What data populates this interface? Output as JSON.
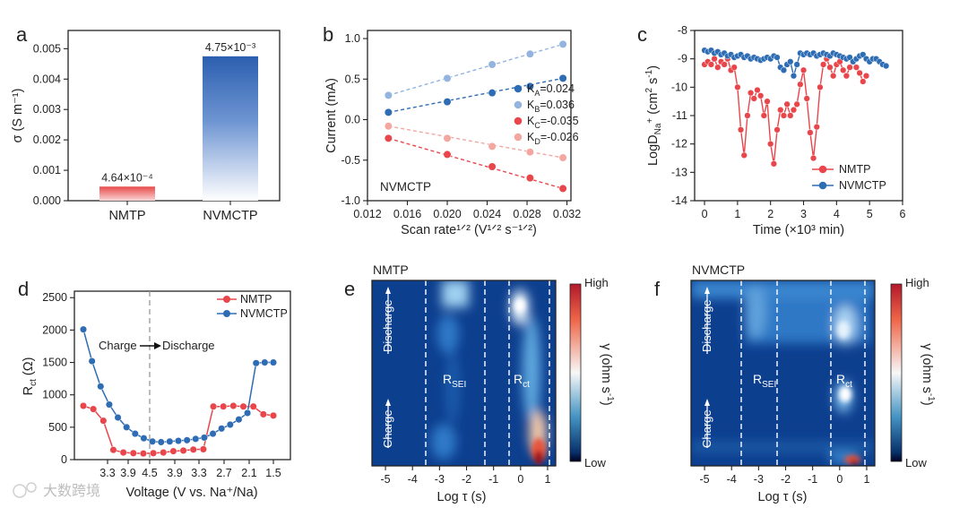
{
  "colors": {
    "nmtp": "#e8464b",
    "nvmctp": "#2e6db4",
    "nmtp_light": "#f4a6a0",
    "nvmctp_light": "#93b4de",
    "axis": "#222222",
    "dash": "#999999"
  },
  "watermark": "大数跨境",
  "chart_data": [
    {
      "panel": "a",
      "type": "bar",
      "categories": [
        "NMTP",
        "NVMCTP"
      ],
      "values": [
        0.000464,
        0.00475
      ],
      "value_labels": [
        "4.64×10⁻⁴",
        "4.75×10⁻³"
      ],
      "ylabel": "σ (S m⁻¹)",
      "yticks": [
        "0.000",
        "0.001",
        "0.002",
        "0.003",
        "0.004",
        "0.005"
      ],
      "ylim": [
        0,
        0.0056
      ]
    },
    {
      "panel": "b",
      "type": "scatter",
      "xlabel": "Scan rate¹ᐟ² (V¹ᐟ² s⁻¹ᐟ²)",
      "ylabel": "Current (mA)",
      "xticks": [
        "0.012",
        "0.016",
        "0.020",
        "0.024",
        "0.028",
        "0.032"
      ],
      "yticks": [
        "-1.0",
        "-0.5",
        "0.0",
        "0.5",
        "1.0"
      ],
      "xlim": [
        0.012,
        0.0324
      ],
      "ylim": [
        -1.0,
        1.1
      ],
      "x": [
        0.0141,
        0.02,
        0.0245,
        0.0283,
        0.0316
      ],
      "annotation": "NVMCTP",
      "series": [
        {
          "name": "KA=0.024",
          "values": [
            0.09,
            0.22,
            0.33,
            0.41,
            0.51
          ]
        },
        {
          "name": "KB=0.036",
          "values": [
            0.3,
            0.51,
            0.68,
            0.81,
            0.93
          ]
        },
        {
          "name": "KC=-0.035",
          "values": [
            -0.23,
            -0.43,
            -0.58,
            -0.72,
            -0.85
          ]
        },
        {
          "name": "KD=-0.026",
          "values": [
            -0.08,
            -0.23,
            -0.33,
            -0.4,
            -0.47
          ]
        }
      ],
      "legend": [
        {
          "k": "K",
          "sub": "A",
          "val": "=0.024"
        },
        {
          "k": "K",
          "sub": "B",
          "val": "=0.036"
        },
        {
          "k": "K",
          "sub": "C",
          "val": "=-0.035"
        },
        {
          "k": "K",
          "sub": "D",
          "val": "=-0.026"
        }
      ]
    },
    {
      "panel": "c",
      "type": "line",
      "xlabel": "Time (×10³ min)",
      "ylabel": "LogD_Na⁺ (cm² s⁻¹)",
      "xticks": [
        "0",
        "1",
        "2",
        "3",
        "4",
        "5",
        "6"
      ],
      "yticks": [
        "-14",
        "-13",
        "-12",
        "-11",
        "-10",
        "-9",
        "-8"
      ],
      "xlim": [
        -0.3,
        6
      ],
      "ylim": [
        -14,
        -8
      ],
      "series": [
        {
          "name": "NMTP",
          "x": [
            0,
            0.1,
            0.2,
            0.3,
            0.4,
            0.5,
            0.6,
            0.7,
            0.8,
            0.9,
            1.0,
            1.1,
            1.2,
            1.3,
            1.4,
            1.5,
            1.6,
            1.7,
            1.8,
            1.9,
            2.0,
            2.1,
            2.2,
            2.3,
            2.4,
            2.5,
            2.6,
            2.7,
            2.8,
            2.9,
            3.0,
            3.1,
            3.2,
            3.3,
            3.4,
            3.5,
            3.6,
            3.7,
            3.8,
            3.9,
            4.0,
            4.1,
            4.2,
            4.3,
            4.4,
            4.5,
            4.6,
            4.7,
            4.8,
            4.9
          ],
          "y": [
            -9.2,
            -9.1,
            -9.2,
            -9.0,
            -9.3,
            -9.1,
            -9.2,
            -9.0,
            -9.4,
            -9.3,
            -10.0,
            -11.5,
            -12.4,
            -11.0,
            -10.2,
            -10.4,
            -10.1,
            -10.3,
            -11.0,
            -10.5,
            -12.0,
            -12.7,
            -11.5,
            -10.8,
            -11.0,
            -10.6,
            -11.0,
            -10.8,
            -10.6,
            -9.9,
            -9.4,
            -10.4,
            -11.6,
            -12.5,
            -11.4,
            -10.0,
            -9.2,
            -9.0,
            -9.3,
            -9.6,
            -9.2,
            -9.1,
            -9.4,
            -9.6,
            -9.3,
            -9.1,
            -9.3,
            -9.5,
            -9.8,
            -9.6
          ]
        },
        {
          "name": "NVMCTP",
          "x": [
            0,
            0.1,
            0.2,
            0.3,
            0.4,
            0.5,
            0.6,
            0.7,
            0.8,
            0.9,
            1.0,
            1.1,
            1.2,
            1.3,
            1.4,
            1.5,
            1.6,
            1.7,
            1.8,
            1.9,
            2.0,
            2.1,
            2.2,
            2.3,
            2.4,
            2.5,
            2.6,
            2.7,
            2.8,
            2.9,
            3.0,
            3.1,
            3.2,
            3.3,
            3.4,
            3.5,
            3.6,
            3.7,
            3.8,
            3.9,
            4.0,
            4.1,
            4.2,
            4.3,
            4.4,
            4.5,
            4.6,
            4.7,
            4.8,
            4.9,
            5.0,
            5.1,
            5.2,
            5.3,
            5.4,
            5.5
          ],
          "y": [
            -8.7,
            -8.75,
            -8.7,
            -8.8,
            -8.75,
            -8.85,
            -8.8,
            -8.9,
            -8.85,
            -8.95,
            -8.9,
            -8.85,
            -8.95,
            -8.9,
            -9.0,
            -8.95,
            -9.0,
            -9.05,
            -9.0,
            -8.95,
            -9.0,
            -8.9,
            -8.95,
            -9.3,
            -9.4,
            -9.2,
            -9.1,
            -9.6,
            -9.2,
            -8.8,
            -8.85,
            -8.8,
            -8.85,
            -8.8,
            -8.9,
            -8.85,
            -8.8,
            -8.85,
            -8.9,
            -8.8,
            -8.85,
            -8.9,
            -8.95,
            -9.0,
            -8.95,
            -9.1,
            -9.0,
            -8.9,
            -8.85,
            -9.0,
            -9.1,
            -9.0,
            -9.0,
            -9.1,
            -9.2,
            -9.25
          ]
        }
      ]
    },
    {
      "panel": "d",
      "type": "line",
      "xlabel": "Voltage (V vs. Na⁺/Na)",
      "ylabel": "R_ct (Ω)",
      "xticks": [
        "3.3",
        "3.9",
        "4.5",
        "3.9",
        "3.3",
        "2.7",
        "2.1",
        "1.5"
      ],
      "yticks": [
        "0",
        "500",
        "1000",
        "1500",
        "2000",
        "2500"
      ],
      "ylim": [
        0,
        2600
      ],
      "annotation": {
        "left": "Charge",
        "right": "Discharge"
      },
      "series": [
        {
          "name": "NMTP",
          "values": [
            830,
            780,
            600,
            150,
            110,
            100,
            95,
            100,
            110,
            130,
            140,
            155,
            160,
            820,
            820,
            830,
            820,
            820,
            700,
            680
          ]
        },
        {
          "name": "NVMCTP",
          "values": [
            2010,
            1520,
            1130,
            850,
            650,
            500,
            400,
            330,
            280,
            270,
            280,
            290,
            300,
            320,
            340,
            400,
            480,
            540,
            620,
            720,
            1490,
            1500,
            1500
          ]
        }
      ]
    },
    {
      "panel": "e",
      "type": "heatmap",
      "title": "NMTP",
      "xlabel": "Log τ (s)",
      "xticks": [
        "-5",
        "-4",
        "-3",
        "-2",
        "-1",
        "0",
        "1"
      ],
      "zlabel": "γ (ohm s⁻¹)",
      "zmax": "High",
      "zmin": "Low",
      "region_labels": [
        {
          "main": "R",
          "sub": "SEI"
        },
        {
          "main": "R",
          "sub": "ct"
        }
      ],
      "arrows": [
        "Discharge",
        "Charge"
      ]
    },
    {
      "panel": "f",
      "type": "heatmap",
      "title": "NVMCTP",
      "xlabel": "Log τ (s)",
      "xticks": [
        "-5",
        "-4",
        "-3",
        "-2",
        "-1",
        "0",
        "1"
      ],
      "zlabel": "γ (ohm s⁻¹)",
      "zmax": "High",
      "zmin": "Low",
      "region_labels": [
        {
          "main": "R",
          "sub": "SEI"
        },
        {
          "main": "R",
          "sub": "ct"
        }
      ],
      "arrows": [
        "Discharge",
        "Charge"
      ]
    }
  ]
}
